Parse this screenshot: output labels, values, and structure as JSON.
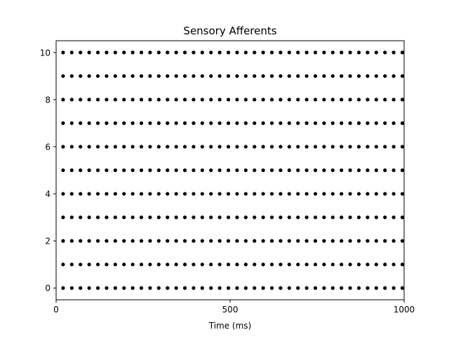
{
  "chart_data": {
    "type": "scatter",
    "title": "Sensory Afferents",
    "xlabel": "Time (ms)",
    "ylabel": "",
    "xlim": [
      0,
      1000
    ],
    "ylim": [
      -0.5,
      10.5
    ],
    "xticks": [
      0,
      500,
      1000
    ],
    "yticks": [
      0,
      2,
      4,
      6,
      8,
      10
    ],
    "grid": false,
    "marker_color": "#000000",
    "neurons": [
      0,
      1,
      2,
      3,
      4,
      5,
      6,
      7,
      8,
      9,
      10
    ],
    "spike_times_ms": [
      20,
      45,
      70,
      95,
      120,
      145,
      170,
      195,
      220,
      245,
      270,
      295,
      320,
      345,
      370,
      395,
      420,
      445,
      470,
      495,
      520,
      545,
      570,
      595,
      620,
      645,
      670,
      695,
      720,
      745,
      770,
      795,
      820,
      845,
      870,
      895,
      920,
      945,
      970,
      995
    ]
  }
}
